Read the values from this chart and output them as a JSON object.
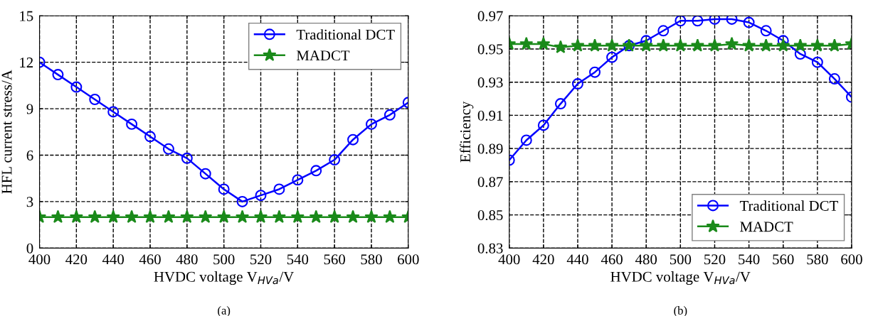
{
  "chart_data": [
    {
      "type": "line",
      "xlabel": "HVDC voltage V$_{HVa}$/V",
      "ylabel": "HFL current stress/A",
      "annotations": [
        "(a)"
      ],
      "x": [
        400,
        410,
        420,
        430,
        440,
        450,
        460,
        470,
        480,
        490,
        500,
        510,
        520,
        530,
        540,
        550,
        560,
        570,
        580,
        590,
        600
      ],
      "series": [
        {
          "name": "Traditional DCT",
          "color": "#0000ff",
          "marker": "circle",
          "values": [
            12.0,
            11.2,
            10.4,
            9.6,
            8.8,
            8.0,
            7.2,
            6.4,
            5.8,
            4.8,
            3.8,
            3.0,
            3.4,
            3.8,
            4.4,
            5.0,
            5.7,
            7.0,
            8.0,
            8.6,
            9.4
          ]
        },
        {
          "name": "MADCT",
          "color": "#1a8a1a",
          "marker": "star",
          "values": [
            2,
            2,
            2,
            2,
            2,
            2,
            2,
            2,
            2,
            2,
            2,
            2,
            2,
            2,
            2,
            2,
            2,
            2,
            2,
            2,
            2
          ]
        }
      ],
      "xlim": [
        400,
        600
      ],
      "xticks": [
        400,
        420,
        440,
        460,
        480,
        500,
        520,
        540,
        560,
        580,
        600
      ],
      "ylim": [
        0,
        15
      ],
      "yticks": [
        0,
        3,
        6,
        9,
        12,
        15
      ],
      "grid": true,
      "legend": "top right",
      "line_style": "solid"
    },
    {
      "type": "line",
      "xlabel": "HVDC voltage V$_{HVa}$/V",
      "ylabel": "Efficiency",
      "annotations": [
        "(b)"
      ],
      "x": [
        400,
        410,
        420,
        430,
        440,
        450,
        460,
        470,
        480,
        490,
        500,
        510,
        520,
        530,
        540,
        550,
        560,
        570,
        580,
        590,
        600
      ],
      "series": [
        {
          "name": "Traditional DCT",
          "color": "#0000ff",
          "marker": "circle",
          "values": [
            0.883,
            0.895,
            0.904,
            0.917,
            0.929,
            0.936,
            0.945,
            0.952,
            0.955,
            0.961,
            0.967,
            0.967,
            0.968,
            0.968,
            0.966,
            0.961,
            0.955,
            0.947,
            0.942,
            0.932,
            0.921
          ]
        },
        {
          "name": "MADCT",
          "color": "#1a8a1a",
          "marker": "star",
          "values": [
            0.953,
            0.953,
            0.953,
            0.951,
            0.952,
            0.952,
            0.952,
            0.952,
            0.952,
            0.952,
            0.952,
            0.952,
            0.952,
            0.953,
            0.952,
            0.952,
            0.952,
            0.952,
            0.952,
            0.952,
            0.953
          ]
        }
      ],
      "xlim": [
        400,
        600
      ],
      "xticks": [
        400,
        420,
        440,
        460,
        480,
        500,
        520,
        540,
        560,
        580,
        600
      ],
      "ylim": [
        0.83,
        0.97
      ],
      "yticks": [
        0.83,
        0.85,
        0.87,
        0.89,
        0.91,
        0.93,
        0.95,
        0.97
      ],
      "grid": true,
      "legend": "bottom right",
      "line_style": "solid"
    }
  ]
}
